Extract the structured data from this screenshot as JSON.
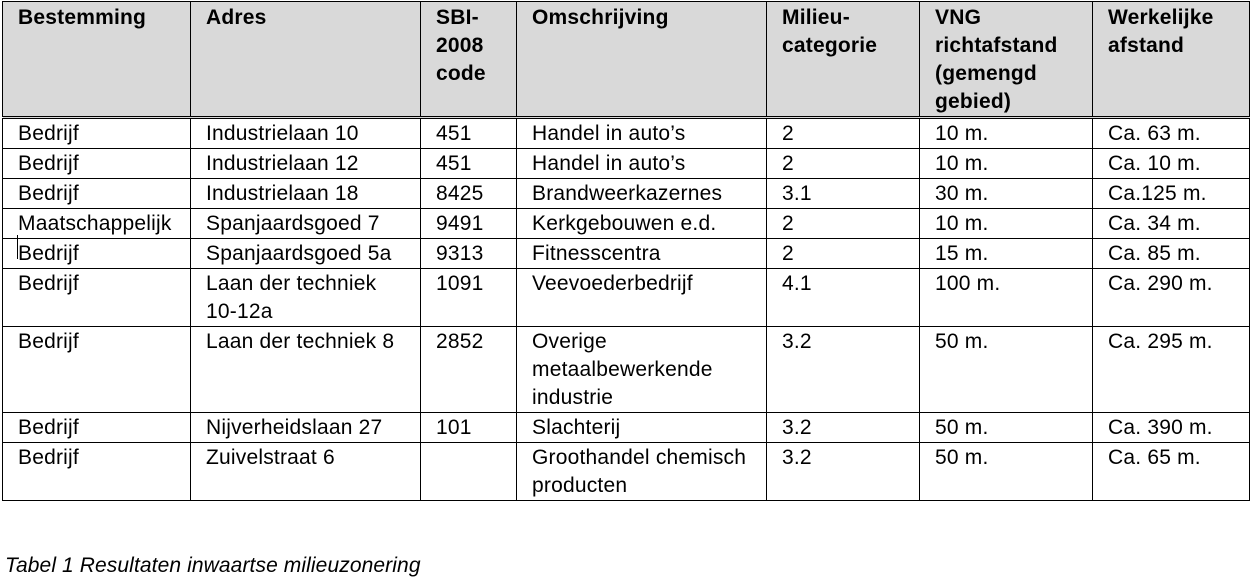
{
  "table": {
    "headers": [
      "Bestemming",
      "Adres",
      "SBI-\n2008\ncode",
      "Omschrijving",
      "Milieu-\ncategorie",
      "VNG\nrichtafstand\n(gemengd\ngebied)",
      "Werkelijke\nafstand"
    ],
    "rows": [
      [
        "Bedrijf",
        "Industrielaan 10",
        "451",
        "Handel in auto’s",
        "2",
        "10 m.",
        "Ca. 63 m."
      ],
      [
        "Bedrijf",
        "Industrielaan 12",
        "451",
        "Handel in auto’s",
        "2",
        "10 m.",
        "Ca. 10 m."
      ],
      [
        "Bedrijf",
        "Industrielaan 18",
        "8425",
        "Brandweerkazernes",
        "3.1",
        "30 m.",
        "Ca.125 m."
      ],
      [
        "Maatschappelijk",
        "Spanjaardsgoed 7",
        "9491",
        "Kerkgebouwen e.d.",
        "2",
        "10 m.",
        "Ca. 34 m."
      ],
      [
        "Bedrijf",
        "Spanjaardsgoed 5a",
        "9313",
        "Fitnesscentra",
        "2",
        "15 m.",
        "Ca. 85 m."
      ],
      [
        "Bedrijf",
        "Laan der techniek 10-12a",
        "1091",
        "Veevoederbedrijf",
        "4.1",
        "100 m.",
        "Ca. 290 m."
      ],
      [
        "Bedrijf",
        "Laan der techniek 8",
        "2852",
        "Overige metaalbewerkende industrie",
        "3.2",
        "50 m.",
        "Ca. 295 m."
      ],
      [
        "Bedrijf",
        "Nijverheidslaan 27",
        "101",
        "Slachterij",
        "3.2",
        "50 m.",
        "Ca. 390 m."
      ],
      [
        "Bedrijf",
        "Zuivelstraat 6",
        "",
        "Groothandel chemisch producten",
        "3.2",
        "50 m.",
        "Ca. 65 m."
      ]
    ]
  },
  "caption": "Tabel 1 Resultaten inwaartse milieuzonering"
}
